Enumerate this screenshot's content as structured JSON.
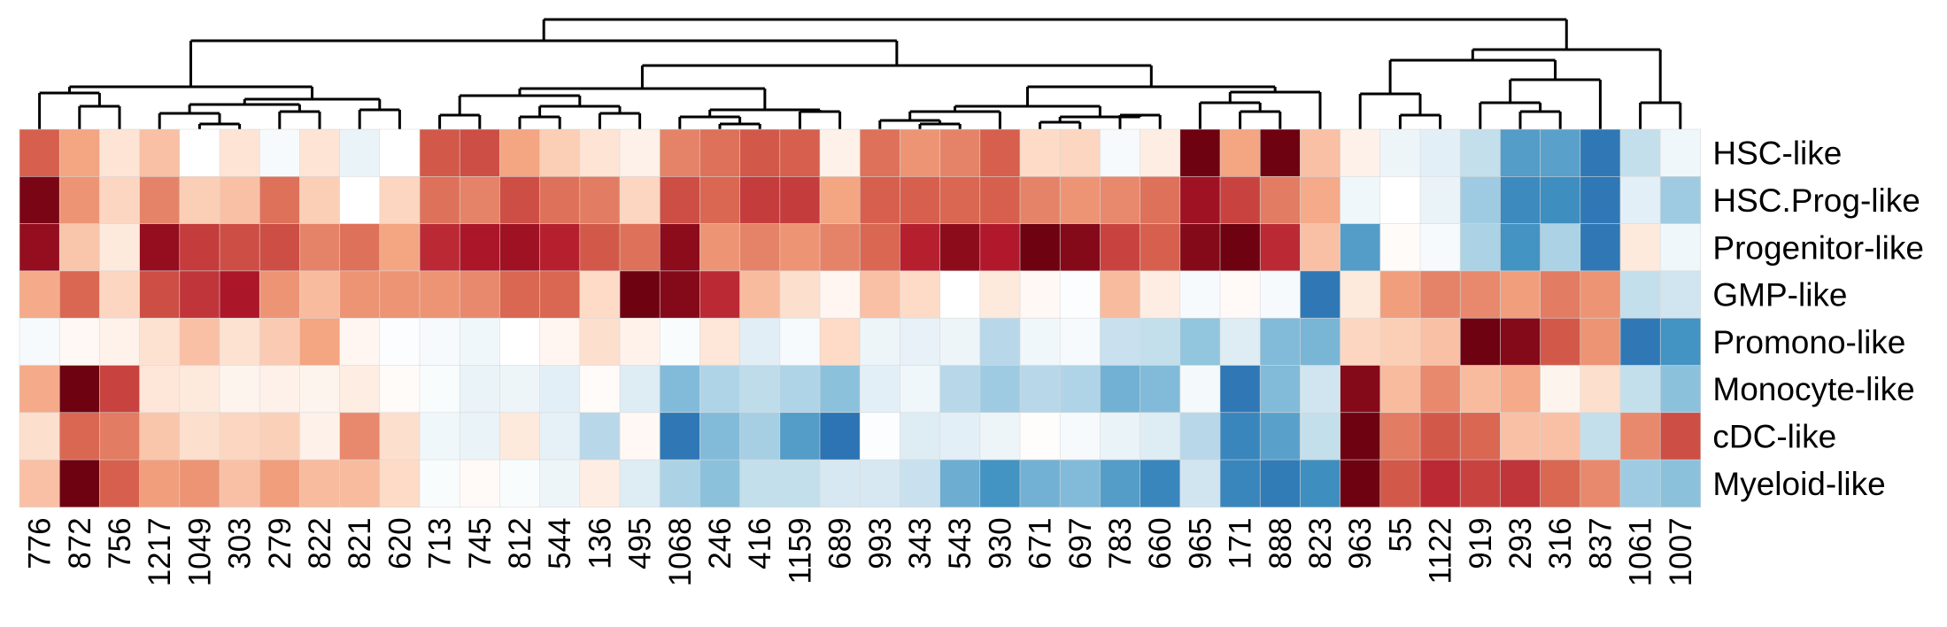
{
  "chart_data": {
    "type": "heatmap",
    "title": "",
    "xlabel": "",
    "ylabel": "",
    "rows": [
      "HSC-like",
      "HSC.Prog-like",
      "Progenitor-like",
      "GMP-like",
      "Promono-like",
      "Monocyte-like",
      "cDC-like",
      "Myeloid-like"
    ],
    "columns": [
      "776",
      "872",
      "756",
      "1217",
      "1049",
      "303",
      "279",
      "822",
      "821",
      "620",
      "713",
      "745",
      "812",
      "544",
      "136",
      "495",
      "1068",
      "246",
      "416",
      "1159",
      "689",
      "993",
      "343",
      "543",
      "930",
      "671",
      "697",
      "783",
      "660",
      "965",
      "171",
      "888",
      "823",
      "963",
      "55",
      "1122",
      "919",
      "293",
      "316",
      "837",
      "1061",
      "1007"
    ],
    "value_range": [
      -1,
      1
    ],
    "colormap": "RdBu_r",
    "color_low": "#2166ac",
    "color_mid": "#ffffff",
    "color_high": "#67000d",
    "values": [
      [
        0.6,
        0.4,
        0.15,
        0.3,
        0.0,
        0.15,
        -0.05,
        0.15,
        -0.12,
        0.0,
        0.62,
        0.65,
        0.4,
        0.25,
        0.15,
        0.08,
        0.5,
        0.55,
        0.62,
        0.6,
        0.08,
        0.55,
        0.45,
        0.5,
        0.6,
        0.2,
        0.22,
        -0.05,
        0.1,
        0.98,
        0.4,
        0.98,
        0.3,
        0.08,
        -0.1,
        -0.15,
        -0.3,
        -0.7,
        -0.68,
        -0.9,
        -0.3,
        -0.08
      ],
      [
        0.95,
        0.45,
        0.22,
        0.5,
        0.25,
        0.3,
        0.55,
        0.25,
        0.0,
        0.22,
        0.55,
        0.5,
        0.65,
        0.55,
        0.52,
        0.22,
        0.65,
        0.58,
        0.7,
        0.7,
        0.4,
        0.6,
        0.6,
        0.58,
        0.6,
        0.5,
        0.45,
        0.48,
        0.55,
        0.85,
        0.68,
        0.52,
        0.38,
        -0.08,
        0.0,
        -0.12,
        -0.45,
        -0.8,
        -0.78,
        -0.9,
        -0.15,
        -0.45
      ],
      [
        0.88,
        0.28,
        0.12,
        0.88,
        0.7,
        0.65,
        0.65,
        0.5,
        0.55,
        0.4,
        0.75,
        0.82,
        0.85,
        0.78,
        0.62,
        0.55,
        0.9,
        0.45,
        0.5,
        0.45,
        0.5,
        0.58,
        0.78,
        0.9,
        0.8,
        0.98,
        0.92,
        0.68,
        0.6,
        0.92,
        0.98,
        0.75,
        0.3,
        -0.7,
        0.02,
        -0.05,
        -0.4,
        -0.75,
        -0.4,
        -0.9,
        0.12,
        -0.08
      ],
      [
        0.38,
        0.58,
        0.22,
        0.65,
        0.72,
        0.82,
        0.45,
        0.32,
        0.45,
        0.45,
        0.45,
        0.48,
        0.58,
        0.58,
        0.2,
        0.98,
        0.92,
        0.75,
        0.32,
        0.18,
        0.05,
        0.3,
        0.2,
        0.0,
        0.12,
        0.04,
        -0.02,
        0.32,
        0.1,
        -0.05,
        0.03,
        -0.05,
        -0.9,
        0.12,
        0.42,
        0.5,
        0.48,
        0.42,
        0.52,
        0.45,
        -0.3,
        -0.25
      ],
      [
        -0.05,
        0.04,
        0.07,
        0.16,
        0.3,
        0.16,
        0.26,
        0.4,
        0.05,
        -0.02,
        -0.05,
        -0.08,
        0.0,
        0.05,
        0.18,
        0.07,
        -0.03,
        0.14,
        -0.16,
        -0.05,
        0.2,
        -0.1,
        -0.13,
        -0.1,
        -0.35,
        -0.08,
        -0.05,
        -0.28,
        -0.3,
        -0.5,
        -0.18,
        -0.55,
        -0.58,
        0.22,
        0.25,
        0.3,
        0.98,
        0.92,
        0.62,
        0.45,
        -0.9,
        -0.75
      ],
      [
        0.38,
        0.98,
        0.68,
        0.14,
        0.12,
        0.06,
        0.08,
        0.06,
        0.1,
        0.02,
        -0.03,
        -0.12,
        -0.1,
        -0.15,
        0.02,
        -0.18,
        -0.55,
        -0.38,
        -0.32,
        -0.38,
        -0.52,
        -0.15,
        -0.08,
        -0.35,
        -0.45,
        -0.35,
        -0.38,
        -0.6,
        -0.55,
        -0.06,
        -0.9,
        -0.55,
        -0.25,
        0.92,
        0.32,
        0.48,
        0.32,
        0.38,
        0.06,
        0.18,
        -0.3,
        -0.52
      ],
      [
        0.18,
        0.58,
        0.52,
        0.28,
        0.18,
        0.22,
        0.24,
        0.08,
        0.48,
        0.18,
        -0.08,
        -0.12,
        0.12,
        -0.14,
        -0.35,
        0.04,
        -0.9,
        -0.55,
        -0.42,
        -0.7,
        -0.92,
        -0.02,
        -0.18,
        -0.15,
        -0.1,
        0.01,
        -0.05,
        -0.12,
        -0.18,
        -0.35,
        -0.82,
        -0.68,
        -0.3,
        0.98,
        0.52,
        0.62,
        0.58,
        0.3,
        0.3,
        -0.3,
        0.48,
        0.65
      ],
      [
        0.3,
        0.98,
        0.6,
        0.42,
        0.45,
        0.3,
        0.42,
        0.32,
        0.32,
        0.2,
        -0.03,
        0.03,
        -0.03,
        -0.1,
        0.1,
        -0.18,
        -0.4,
        -0.52,
        -0.3,
        -0.3,
        -0.22,
        -0.22,
        -0.28,
        -0.62,
        -0.75,
        -0.6,
        -0.55,
        -0.7,
        -0.82,
        -0.25,
        -0.82,
        -0.88,
        -0.78,
        0.98,
        0.62,
        0.75,
        0.68,
        0.72,
        0.58,
        0.48,
        -0.45,
        -0.52
      ]
    ],
    "legend": "none",
    "grid": false
  }
}
